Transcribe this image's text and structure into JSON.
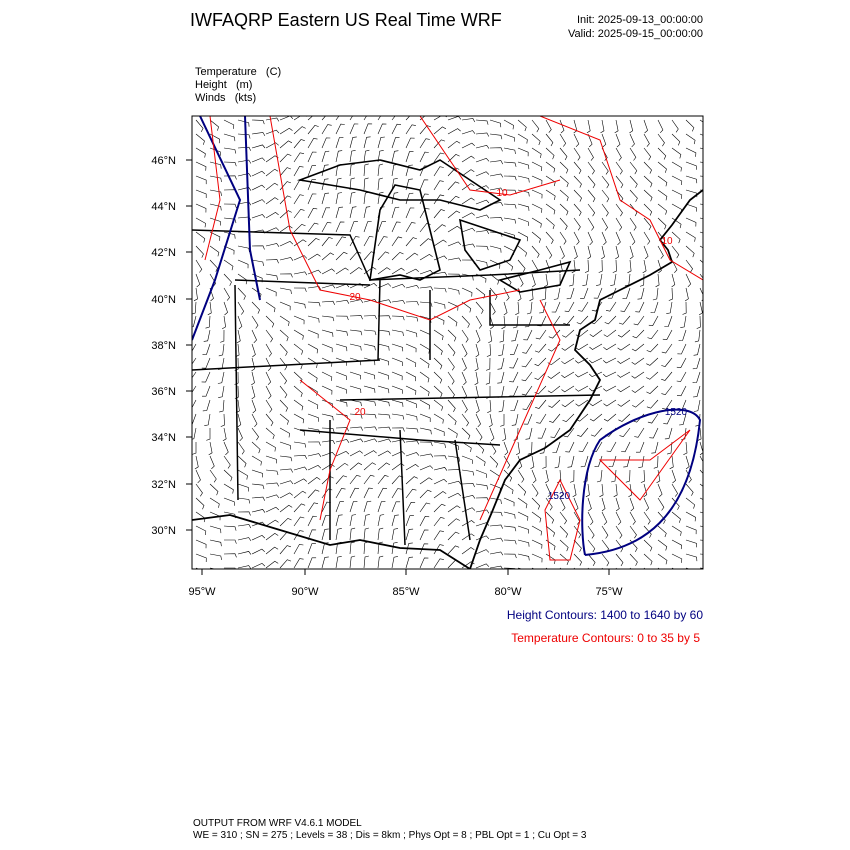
{
  "header": {
    "title": "IWFAQRP Eastern US Real Time WRF",
    "init": "Init: 2025-09-13_00:00:00",
    "valid": "Valid: 2025-09-15_00:00:00"
  },
  "fields": [
    "Temperature   (C)",
    "Height   (m)",
    "Winds   (kts)"
  ],
  "map": {
    "lat_labels": [
      "46°N",
      "44°N",
      "42°N",
      "40°N",
      "38°N",
      "36°N",
      "34°N",
      "32°N",
      "30°N"
    ],
    "lon_labels": [
      "95°W",
      "90°W",
      "85°W",
      "80°W",
      "75°W"
    ],
    "temperature_labels": [
      "10",
      "10",
      "20",
      "20"
    ],
    "height_labels": [
      "1520",
      "1520"
    ]
  },
  "legend": {
    "height": "Height Contours: 1400 to 1640 by 60",
    "temperature": "Temperature Contours: 0 to 35 by 5"
  },
  "footer": {
    "line1": "OUTPUT FROM WRF V4.6.1 MODEL",
    "line2": "WE = 310 ; SN = 275 ; Levels = 38 ; Dis = 8km ; Phys Opt = 8 ; PBL Opt = 1 ; Cu Opt = 3"
  }
}
